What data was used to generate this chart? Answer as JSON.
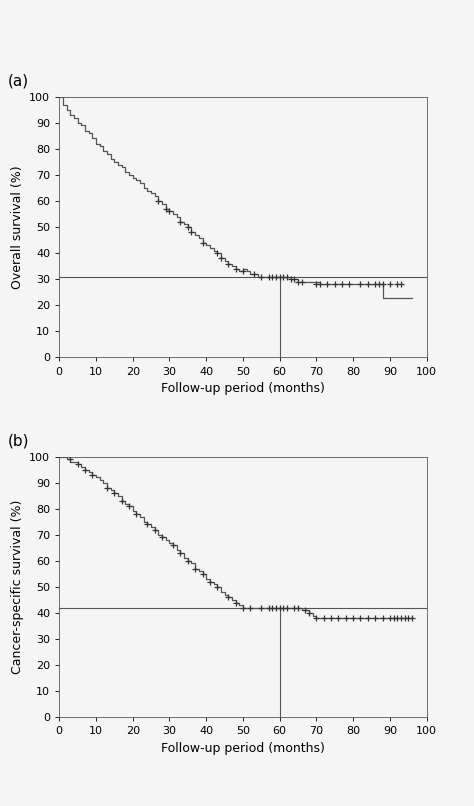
{
  "panel_a": {
    "label": "(a)",
    "ylabel": "Overall survival (%)",
    "xlabel": "Follow-up period (months)",
    "ylim": [
      0,
      100
    ],
    "xlim": [
      0,
      100
    ],
    "yticks": [
      0,
      10,
      20,
      30,
      40,
      50,
      60,
      70,
      80,
      90,
      100
    ],
    "xticks": [
      0,
      10,
      20,
      30,
      40,
      50,
      60,
      70,
      80,
      90,
      100
    ],
    "hline_y": 31,
    "vline_x": 60,
    "vline_y_top": 31,
    "curve_x": [
      0,
      1,
      2,
      3,
      4,
      5,
      6,
      7,
      8,
      9,
      10,
      11,
      12,
      13,
      14,
      15,
      16,
      17,
      18,
      19,
      20,
      21,
      22,
      23,
      24,
      25,
      26,
      27,
      28,
      29,
      30,
      31,
      32,
      33,
      34,
      35,
      36,
      37,
      38,
      39,
      40,
      41,
      42,
      43,
      44,
      45,
      46,
      47,
      48,
      49,
      50,
      51,
      52,
      53,
      54,
      55,
      56,
      57,
      58,
      59,
      60,
      61,
      62,
      63,
      64,
      65,
      66,
      67,
      68,
      69,
      70,
      71,
      72,
      73,
      74,
      75,
      76,
      77,
      78,
      79,
      80,
      81,
      82,
      83,
      84,
      85,
      86,
      87,
      88,
      89,
      90,
      91,
      92,
      93,
      94,
      95,
      96
    ],
    "curve_y": [
      100,
      97,
      95,
      93,
      92,
      90,
      89,
      87,
      86,
      84,
      82,
      81,
      79,
      78,
      76,
      75,
      74,
      73,
      71,
      70,
      69,
      68,
      67,
      65,
      64,
      63,
      62,
      60,
      59,
      57,
      56,
      55,
      54,
      52,
      51,
      50,
      48,
      47,
      46,
      44,
      43,
      42,
      41,
      40,
      38,
      37,
      36,
      35,
      34,
      33,
      34,
      33,
      32,
      32,
      31,
      31,
      31,
      31,
      31,
      31,
      31,
      31,
      31,
      30,
      30,
      29,
      29,
      29,
      29,
      29,
      29,
      28,
      28,
      28,
      28,
      28,
      28,
      28,
      28,
      28,
      28,
      28,
      28,
      28,
      28,
      28,
      28,
      28,
      23,
      23,
      23,
      23,
      23,
      23,
      23,
      23,
      23
    ],
    "censor_x": [
      27,
      29,
      30,
      33,
      35,
      36,
      39,
      43,
      44,
      46,
      48,
      50,
      53,
      55,
      57,
      58,
      59,
      60,
      61,
      62,
      63,
      64,
      65,
      66,
      70,
      71,
      73,
      75,
      77,
      79,
      82,
      84,
      86,
      87,
      88,
      90,
      92,
      93
    ],
    "censor_y": [
      60,
      57,
      56,
      52,
      50,
      48,
      44,
      40,
      38,
      36,
      34,
      33,
      32,
      31,
      31,
      31,
      31,
      31,
      31,
      31,
      30,
      30,
      29,
      29,
      28,
      28,
      28,
      28,
      28,
      28,
      28,
      28,
      28,
      28,
      28,
      28,
      28,
      28
    ]
  },
  "panel_b": {
    "label": "(b)",
    "ylabel": "Cancer-specific survival (%)",
    "xlabel": "Follow-up period (months)",
    "ylim": [
      0,
      100
    ],
    "xlim": [
      0,
      100
    ],
    "yticks": [
      0,
      10,
      20,
      30,
      40,
      50,
      60,
      70,
      80,
      90,
      100
    ],
    "xticks": [
      0,
      10,
      20,
      30,
      40,
      50,
      60,
      70,
      80,
      90,
      100
    ],
    "hline_y": 42,
    "vline_x": 60,
    "vline_y_top": 42,
    "curve_x": [
      0,
      1,
      2,
      3,
      4,
      5,
      6,
      7,
      8,
      9,
      10,
      11,
      12,
      13,
      14,
      15,
      16,
      17,
      18,
      19,
      20,
      21,
      22,
      23,
      24,
      25,
      26,
      27,
      28,
      29,
      30,
      31,
      32,
      33,
      34,
      35,
      36,
      37,
      38,
      39,
      40,
      41,
      42,
      43,
      44,
      45,
      46,
      47,
      48,
      49,
      50,
      51,
      52,
      53,
      54,
      55,
      56,
      57,
      58,
      59,
      60,
      61,
      62,
      63,
      64,
      65,
      66,
      67,
      68,
      69,
      70,
      71,
      72,
      73,
      74,
      75,
      76,
      77,
      78,
      79,
      80,
      81,
      82,
      83,
      84,
      85,
      86,
      87,
      88,
      89,
      90,
      91,
      92,
      93,
      94,
      95,
      96
    ],
    "curve_y": [
      100,
      100,
      99,
      98,
      98,
      97,
      96,
      95,
      94,
      93,
      92,
      91,
      90,
      88,
      87,
      86,
      85,
      83,
      82,
      81,
      79,
      78,
      77,
      75,
      74,
      73,
      72,
      70,
      69,
      68,
      67,
      66,
      64,
      63,
      61,
      60,
      59,
      57,
      56,
      55,
      53,
      52,
      51,
      50,
      48,
      47,
      46,
      45,
      44,
      43,
      42,
      42,
      42,
      42,
      42,
      42,
      42,
      42,
      42,
      42,
      42,
      42,
      42,
      42,
      42,
      42,
      41,
      41,
      40,
      39,
      38,
      38,
      38,
      38,
      38,
      38,
      38,
      38,
      38,
      38,
      38,
      38,
      38,
      38,
      38,
      38,
      38,
      38,
      38,
      38,
      38,
      38,
      38,
      38,
      38,
      38,
      38
    ],
    "censor_x": [
      3,
      5,
      7,
      9,
      13,
      15,
      17,
      19,
      21,
      24,
      26,
      28,
      31,
      33,
      35,
      37,
      39,
      41,
      43,
      46,
      48,
      50,
      52,
      55,
      57,
      58,
      59,
      60,
      61,
      62,
      64,
      65,
      67,
      68,
      70,
      72,
      74,
      76,
      78,
      80,
      82,
      84,
      86,
      88,
      90,
      91,
      92,
      93,
      94,
      95,
      96
    ],
    "censor_y": [
      99,
      97,
      95,
      93,
      88,
      86,
      83,
      81,
      78,
      74,
      72,
      69,
      66,
      63,
      60,
      57,
      55,
      52,
      50,
      46,
      44,
      42,
      42,
      42,
      42,
      42,
      42,
      42,
      42,
      42,
      42,
      42,
      41,
      40,
      38,
      38,
      38,
      38,
      38,
      38,
      38,
      38,
      38,
      38,
      38,
      38,
      38,
      38,
      38,
      38,
      38
    ]
  },
  "line_color": "#555555",
  "censor_color": "#333333",
  "ref_line_color": "#555555",
  "background_color": "#f5f5f5",
  "tick_labelsize": 8,
  "axis_labelsize": 9,
  "panel_labelsize": 11
}
